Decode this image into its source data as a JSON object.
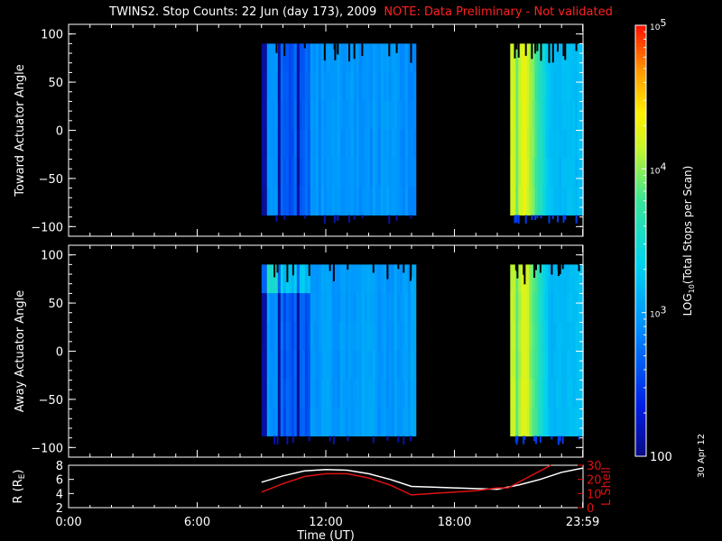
{
  "title": "TWINS2. Stop Counts: 22 Jun (day 173), 2009",
  "note": "NOTE: Data Preliminary - Not validated",
  "date_stamp": "30 Apr 12",
  "colors": {
    "background": "#000000",
    "axes": "#ffffff",
    "note": "#ff2020",
    "r_line": "#ffffff",
    "lshell_line": "#e01010"
  },
  "chart_data": [
    {
      "type": "heatmap",
      "ylabel": "Toward Actuator Angle",
      "xlim": [
        0,
        24
      ],
      "ylim": [
        -110,
        110
      ],
      "yticks": [
        -100,
        -50,
        0,
        50,
        100
      ],
      "grid": false,
      "scale": "log",
      "data_rows": [
        -88,
        90
      ],
      "segments": [
        {
          "x_start": 9.0,
          "x_end": 16.2,
          "level_range": [
            2.65,
            3.05
          ]
        },
        {
          "x_start": 20.6,
          "x_end": 23.9,
          "level_range": [
            3.0,
            4.35
          ]
        }
      ]
    },
    {
      "type": "heatmap",
      "ylabel": "Away Actuator Angle",
      "xlim": [
        0,
        24
      ],
      "ylim": [
        -110,
        110
      ],
      "yticks": [
        -100,
        -50,
        0,
        50,
        100
      ],
      "grid": false,
      "scale": "log",
      "data_rows": [
        -88,
        90
      ],
      "segments": [
        {
          "x_start": 9.0,
          "x_end": 16.2,
          "level_range": [
            2.65,
            3.1
          ]
        },
        {
          "x_start": 20.6,
          "x_end": 23.9,
          "level_range": [
            3.0,
            4.3
          ]
        }
      ]
    },
    {
      "type": "line",
      "xlabel": "Time (UT)",
      "ylabel": "R (R",
      "ylabel_sub": "E",
      "ylabel_end": ")",
      "y2label": "L Shell",
      "xlim": [
        0,
        24
      ],
      "ylim": [
        2,
        8
      ],
      "yticks": [
        2,
        4,
        6,
        8
      ],
      "y2lim": [
        0,
        30
      ],
      "y2ticks": [
        0,
        10,
        20,
        30
      ],
      "xticks": [
        {
          "x": 0,
          "label": "0:00"
        },
        {
          "x": 6,
          "label": "6:00"
        },
        {
          "x": 12,
          "label": "12:00"
        },
        {
          "x": 18,
          "label": "18:00"
        },
        {
          "x": 23.983,
          "label": "23:59"
        }
      ],
      "series": [
        {
          "axis": "left",
          "x": [
            9.0,
            10,
            11,
            12,
            13,
            14,
            15,
            16,
            17,
            18,
            19,
            20,
            21,
            22,
            23,
            24
          ],
          "y": [
            5.6,
            6.5,
            7.2,
            7.4,
            7.3,
            6.8,
            6.0,
            5.0,
            4.9,
            4.8,
            4.7,
            4.6,
            5.2,
            6.0,
            7.0,
            7.6
          ]
        },
        {
          "axis": "right",
          "x": [
            9.0,
            10,
            11,
            12,
            13,
            14,
            15,
            16,
            17,
            18,
            19,
            20,
            20.5,
            21.5,
            22.5
          ],
          "y": [
            11,
            17,
            22,
            24,
            24,
            21,
            16,
            9,
            10,
            11,
            12,
            14,
            14,
            22,
            30
          ]
        }
      ]
    }
  ],
  "colorbar": {
    "label": "LOG",
    "label_sub": "10",
    "label_end": "(Total Stops per Scan)",
    "scale": "log",
    "range": [
      100,
      100000
    ],
    "ticks": [
      {
        "value": 100,
        "label": "100"
      },
      {
        "value": 1000,
        "base": "10",
        "exp": "3"
      },
      {
        "value": 10000,
        "base": "10",
        "exp": "4"
      },
      {
        "value": 100000,
        "base": "10",
        "exp": "5"
      }
    ]
  }
}
